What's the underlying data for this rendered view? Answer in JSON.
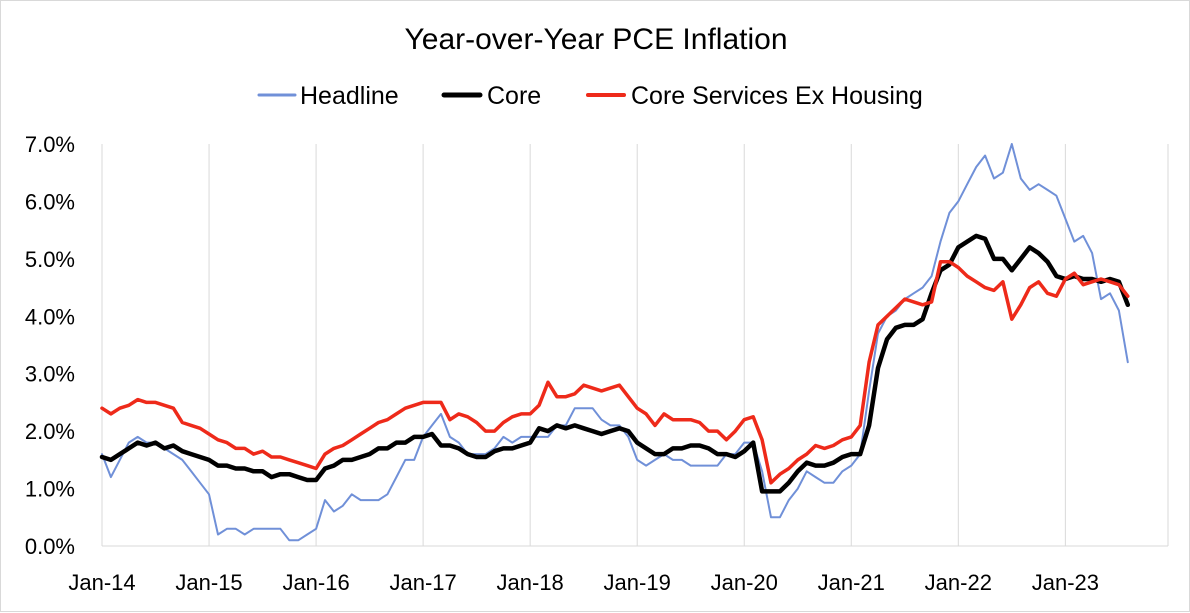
{
  "chart_data": {
    "type": "line",
    "title": "Year-over-Year PCE Inflation",
    "xlabel": "",
    "ylabel": "",
    "ylim": [
      0,
      7
    ],
    "y_ticks": [
      0,
      1,
      2,
      3,
      4,
      5,
      6,
      7
    ],
    "y_tick_labels": [
      "0.0%",
      "1.0%",
      "2.0%",
      "3.0%",
      "4.0%",
      "5.0%",
      "6.0%",
      "7.0%"
    ],
    "x_start": "Jan-14",
    "x_tick_labels": [
      "Jan-14",
      "Jan-15",
      "Jan-16",
      "Jan-17",
      "Jan-18",
      "Jan-19",
      "Jan-20",
      "Jan-21",
      "Jan-22",
      "Jan-23"
    ],
    "x_tick_month_index": [
      0,
      12,
      24,
      36,
      48,
      60,
      72,
      84,
      96,
      108
    ],
    "grid": "vertical",
    "legend_position": "top",
    "series": [
      {
        "name": "Headline",
        "color": "#7090d8",
        "values": [
          1.6,
          1.2,
          1.5,
          1.8,
          1.9,
          1.8,
          1.8,
          1.7,
          1.6,
          1.5,
          1.3,
          1.1,
          0.9,
          0.2,
          0.3,
          0.3,
          0.2,
          0.3,
          0.3,
          0.3,
          0.3,
          0.1,
          0.1,
          0.2,
          0.3,
          0.8,
          0.6,
          0.7,
          0.9,
          0.8,
          0.8,
          0.8,
          0.9,
          1.2,
          1.5,
          1.5,
          1.9,
          2.1,
          2.3,
          1.9,
          1.8,
          1.6,
          1.6,
          1.6,
          1.7,
          1.9,
          1.8,
          1.9,
          1.9,
          1.9,
          1.9,
          2.1,
          2.1,
          2.4,
          2.4,
          2.4,
          2.2,
          2.1,
          2.1,
          1.9,
          1.5,
          1.4,
          1.5,
          1.6,
          1.5,
          1.5,
          1.4,
          1.4,
          1.4,
          1.4,
          1.6,
          1.6,
          1.8,
          1.8,
          1.3,
          0.5,
          0.5,
          0.8,
          1.0,
          1.3,
          1.2,
          1.1,
          1.1,
          1.3,
          1.4,
          1.6,
          2.7,
          3.7,
          4.0,
          4.1,
          4.3,
          4.4,
          4.5,
          4.7,
          5.3,
          5.8,
          6.0,
          6.3,
          6.6,
          6.8,
          6.4,
          6.5,
          7.0,
          6.4,
          6.2,
          6.3,
          6.2,
          6.1,
          5.7,
          5.3,
          5.4,
          5.1,
          4.3,
          4.4,
          4.1,
          3.2
        ]
      },
      {
        "name": "Core",
        "color": "#000000",
        "values": [
          1.55,
          1.5,
          1.6,
          1.7,
          1.8,
          1.75,
          1.8,
          1.7,
          1.75,
          1.65,
          1.6,
          1.55,
          1.5,
          1.4,
          1.4,
          1.35,
          1.35,
          1.3,
          1.3,
          1.2,
          1.25,
          1.25,
          1.2,
          1.15,
          1.15,
          1.35,
          1.4,
          1.5,
          1.5,
          1.55,
          1.6,
          1.7,
          1.7,
          1.8,
          1.8,
          1.9,
          1.9,
          1.95,
          1.75,
          1.75,
          1.7,
          1.6,
          1.55,
          1.55,
          1.65,
          1.7,
          1.7,
          1.75,
          1.8,
          2.05,
          2.0,
          2.1,
          2.05,
          2.1,
          2.05,
          2.0,
          1.95,
          2.0,
          2.05,
          2.0,
          1.8,
          1.7,
          1.6,
          1.6,
          1.7,
          1.7,
          1.75,
          1.75,
          1.7,
          1.6,
          1.6,
          1.55,
          1.65,
          1.8,
          0.95,
          0.95,
          0.95,
          1.1,
          1.3,
          1.45,
          1.4,
          1.4,
          1.45,
          1.55,
          1.6,
          1.6,
          2.1,
          3.1,
          3.6,
          3.8,
          3.85,
          3.85,
          3.95,
          4.4,
          4.8,
          4.9,
          5.2,
          5.3,
          5.4,
          5.35,
          5.0,
          5.0,
          4.8,
          5.0,
          5.2,
          5.1,
          4.95,
          4.7,
          4.65,
          4.7,
          4.65,
          4.65,
          4.6,
          4.65,
          4.6,
          4.2
        ]
      },
      {
        "name": "Core Services Ex Housing",
        "color": "#ee2a1a",
        "values": [
          2.4,
          2.3,
          2.4,
          2.45,
          2.55,
          2.5,
          2.5,
          2.45,
          2.4,
          2.15,
          2.1,
          2.05,
          1.95,
          1.85,
          1.8,
          1.7,
          1.7,
          1.6,
          1.65,
          1.55,
          1.55,
          1.5,
          1.45,
          1.4,
          1.35,
          1.6,
          1.7,
          1.75,
          1.85,
          1.95,
          2.05,
          2.15,
          2.2,
          2.3,
          2.4,
          2.45,
          2.5,
          2.5,
          2.5,
          2.2,
          2.3,
          2.25,
          2.15,
          2.0,
          2.0,
          2.15,
          2.25,
          2.3,
          2.3,
          2.45,
          2.85,
          2.6,
          2.6,
          2.65,
          2.8,
          2.75,
          2.7,
          2.75,
          2.8,
          2.6,
          2.4,
          2.3,
          2.1,
          2.3,
          2.2,
          2.2,
          2.2,
          2.15,
          2.0,
          2.0,
          1.85,
          2.0,
          2.2,
          2.25,
          1.85,
          1.1,
          1.25,
          1.35,
          1.5,
          1.6,
          1.75,
          1.7,
          1.75,
          1.85,
          1.9,
          2.1,
          3.2,
          3.85,
          4.0,
          4.15,
          4.3,
          4.25,
          4.2,
          4.25,
          4.95,
          4.95,
          4.85,
          4.7,
          4.6,
          4.5,
          4.45,
          4.6,
          3.95,
          4.2,
          4.5,
          4.6,
          4.4,
          4.35,
          4.65,
          4.75,
          4.55,
          4.6,
          4.65,
          4.6,
          4.55,
          4.35
        ]
      }
    ]
  }
}
